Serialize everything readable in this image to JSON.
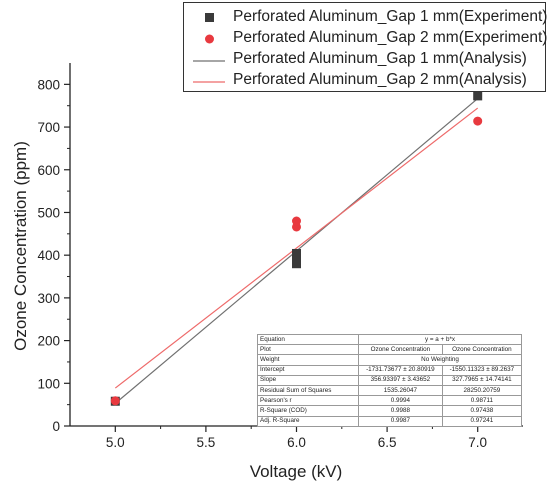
{
  "chart_data": {
    "type": "scatter",
    "xlabel": "Voltage (kV)",
    "ylabel": "Ozone Concentration (ppm)",
    "xlim": [
      4.75,
      7.25
    ],
    "ylim": [
      0,
      850
    ],
    "xticks": [
      "5.0",
      "5.5",
      "6.0",
      "6.5",
      "7.0"
    ],
    "yticks": [
      "0",
      "100",
      "200",
      "300",
      "400",
      "500",
      "600",
      "700",
      "800"
    ],
    "legend_position": "top-right",
    "series": [
      {
        "name": "Perforated Aluminum_Gap 1 mm(Experiment)",
        "kind": "points",
        "marker": "square",
        "color": "#3a3a3a",
        "points": [
          [
            5.0,
            58
          ],
          [
            6.0,
            380
          ],
          [
            6.0,
            392
          ],
          [
            6.0,
            404
          ],
          [
            7.0,
            773
          ]
        ]
      },
      {
        "name": "Perforated Aluminum_Gap 2 mm(Experiment)",
        "kind": "points",
        "marker": "circle",
        "color": "#e8393f",
        "points": [
          [
            5.0,
            59
          ],
          [
            6.0,
            466
          ],
          [
            6.0,
            480
          ],
          [
            7.0,
            714
          ]
        ]
      },
      {
        "name": "Perforated Aluminum_Gap 1 mm(Analysis)",
        "kind": "line",
        "color": "#707070",
        "intercept": -1731.73677,
        "slope": 356.93397,
        "x_range": [
          5.0,
          7.0
        ]
      },
      {
        "name": "Perforated Aluminum_Gap 2 mm(Analysis)",
        "kind": "line",
        "color": "#ee6a6a",
        "intercept": -1550.11323,
        "slope": 327.7965,
        "x_range": [
          5.0,
          7.0
        ]
      }
    ],
    "stats_table": {
      "rows": [
        [
          "Equation",
          "y = a + b*x"
        ],
        [
          "Plot",
          "Ozone Concentration",
          "Ozone Concentration"
        ],
        [
          "Weight",
          "No Weighting"
        ],
        [
          "Intercept",
          "-1731.73677 ± 20.80919",
          "-1550.11323 ± 89.2637"
        ],
        [
          "Slope",
          "356.93397 ± 3.43652",
          "327.7965 ± 14.74141"
        ],
        [
          "Residual Sum of Squares",
          "1535.26047",
          "28250.20759"
        ],
        [
          "Pearson's r",
          "0.9994",
          "0.98711"
        ],
        [
          "R-Square (COD)",
          "0.9988",
          "0.97438"
        ],
        [
          "Adj. R-Square",
          "0.9987",
          "0.97241"
        ]
      ]
    }
  }
}
